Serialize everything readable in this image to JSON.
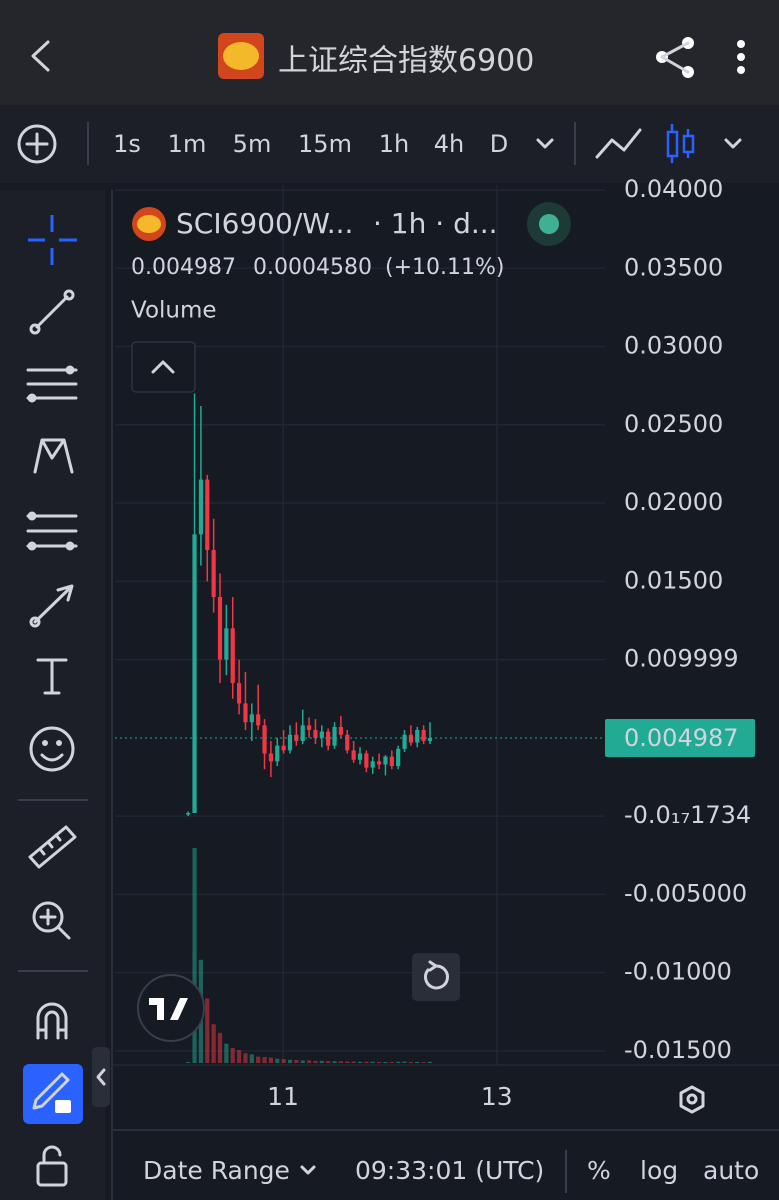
{
  "header": {
    "title": "上证综合指数6900"
  },
  "toolbar": {
    "intervals": [
      "1s",
      "1m",
      "5m",
      "15m",
      "1h",
      "4h",
      "D"
    ],
    "active": "1h"
  },
  "legend": {
    "symbol": "SCI6900/W...",
    "details": "· 1h · d...",
    "change": "0.0004580",
    "change_percent": "(+10.11%)",
    "study": "Volume"
  },
  "chart_data": {
    "type": "candlestick",
    "open": [
      0.0001,
      0.0002,
      0.018,
      0.0215,
      0.017,
      0.014,
      0.01,
      0.012,
      0.0085,
      0.0072,
      0.006,
      0.0065,
      0.0058,
      0.004,
      0.0035,
      0.0045,
      0.0042,
      0.0052,
      0.0048,
      0.0058,
      0.0055,
      0.005,
      0.0054,
      0.0045,
      0.0057,
      0.0052,
      0.0042,
      0.0036,
      0.004,
      0.0031,
      0.0035,
      0.0033,
      0.0038,
      0.0032,
      0.0043,
      0.0052,
      0.0047,
      0.0055,
      0.0048
    ],
    "high": [
      0.0003,
      0.027,
      0.0262,
      0.0218,
      0.019,
      0.0155,
      0.0135,
      0.014,
      0.01,
      0.0092,
      0.0072,
      0.0084,
      0.0062,
      0.0048,
      0.005,
      0.0055,
      0.0058,
      0.006,
      0.0068,
      0.0063,
      0.0062,
      0.0058,
      0.0056,
      0.006,
      0.0064,
      0.0055,
      0.0048,
      0.0044,
      0.0042,
      0.0038,
      0.004,
      0.0039,
      0.0042,
      0.0045,
      0.0055,
      0.0058,
      0.0057,
      0.0058,
      0.006
    ],
    "low": [
      0,
      0.0002,
      0.016,
      0.015,
      0.013,
      0.0085,
      0.009,
      0.0075,
      0.0065,
      0.0055,
      0.0048,
      0.0055,
      0.003,
      0.0025,
      0.0032,
      0.004,
      0.004,
      0.0045,
      0.0046,
      0.005,
      0.0046,
      0.0044,
      0.0042,
      0.0043,
      0.005,
      0.004,
      0.0034,
      0.0033,
      0.0028,
      0.0027,
      0.003,
      0.0026,
      0.003,
      0.003,
      0.0041,
      0.0045,
      0.0044,
      0.0046,
      0.0046
    ],
    "close": [
      0.0002,
      0.018,
      0.0215,
      0.017,
      0.014,
      0.01,
      0.012,
      0.0085,
      0.0072,
      0.006,
      0.0065,
      0.0058,
      0.004,
      0.0035,
      0.0045,
      0.0042,
      0.0052,
      0.0048,
      0.0058,
      0.0055,
      0.005,
      0.0054,
      0.0045,
      0.0057,
      0.0052,
      0.0042,
      0.0036,
      0.004,
      0.0031,
      0.0035,
      0.0033,
      0.0038,
      0.0032,
      0.0043,
      0.0052,
      0.0047,
      0.0055,
      0.0048,
      0.004987
    ],
    "volume": [
      5,
      1000,
      480,
      300,
      180,
      140,
      90,
      70,
      60,
      45,
      40,
      30,
      28,
      25,
      20,
      18,
      15,
      14,
      12,
      12,
      10,
      10,
      9,
      8,
      8,
      7,
      7,
      6,
      6,
      6,
      5,
      5,
      5,
      6,
      7,
      5,
      5,
      4,
      6
    ],
    "up_color": "#22ab94",
    "down_color": "#f23645",
    "last_price": 0.004987,
    "ylim": [
      -0.0159,
      0.04
    ],
    "yticks": [
      {
        "value": 0.04,
        "label": "0.04000"
      },
      {
        "value": 0.035,
        "label": "0.03500"
      },
      {
        "value": 0.03,
        "label": "0.03000"
      },
      {
        "value": 0.025,
        "label": "0.02500"
      },
      {
        "value": 0.02,
        "label": "0.02000"
      },
      {
        "value": 0.015,
        "label": "0.01500"
      },
      0.009999,
      {
        "value": -1.734e-18,
        "label": "-0.0₁₇1734"
      },
      {
        "value": -0.005,
        "label": "-0.005000"
      },
      {
        "value": -0.01,
        "label": "-0.01000"
      },
      {
        "value": -0.015,
        "label": "-0.01500"
      }
    ],
    "xlim": [
      -11.5,
      65.5
    ],
    "xticks": [
      {
        "value": 14.9,
        "label": "11"
      },
      {
        "value": 48.5,
        "label": "13"
      }
    ],
    "grid": true
  },
  "bottom_bar": {
    "date_range": "Date Range",
    "time": "09:33:01 (UTC)",
    "percent": "%",
    "log": "log",
    "auto": "auto"
  }
}
